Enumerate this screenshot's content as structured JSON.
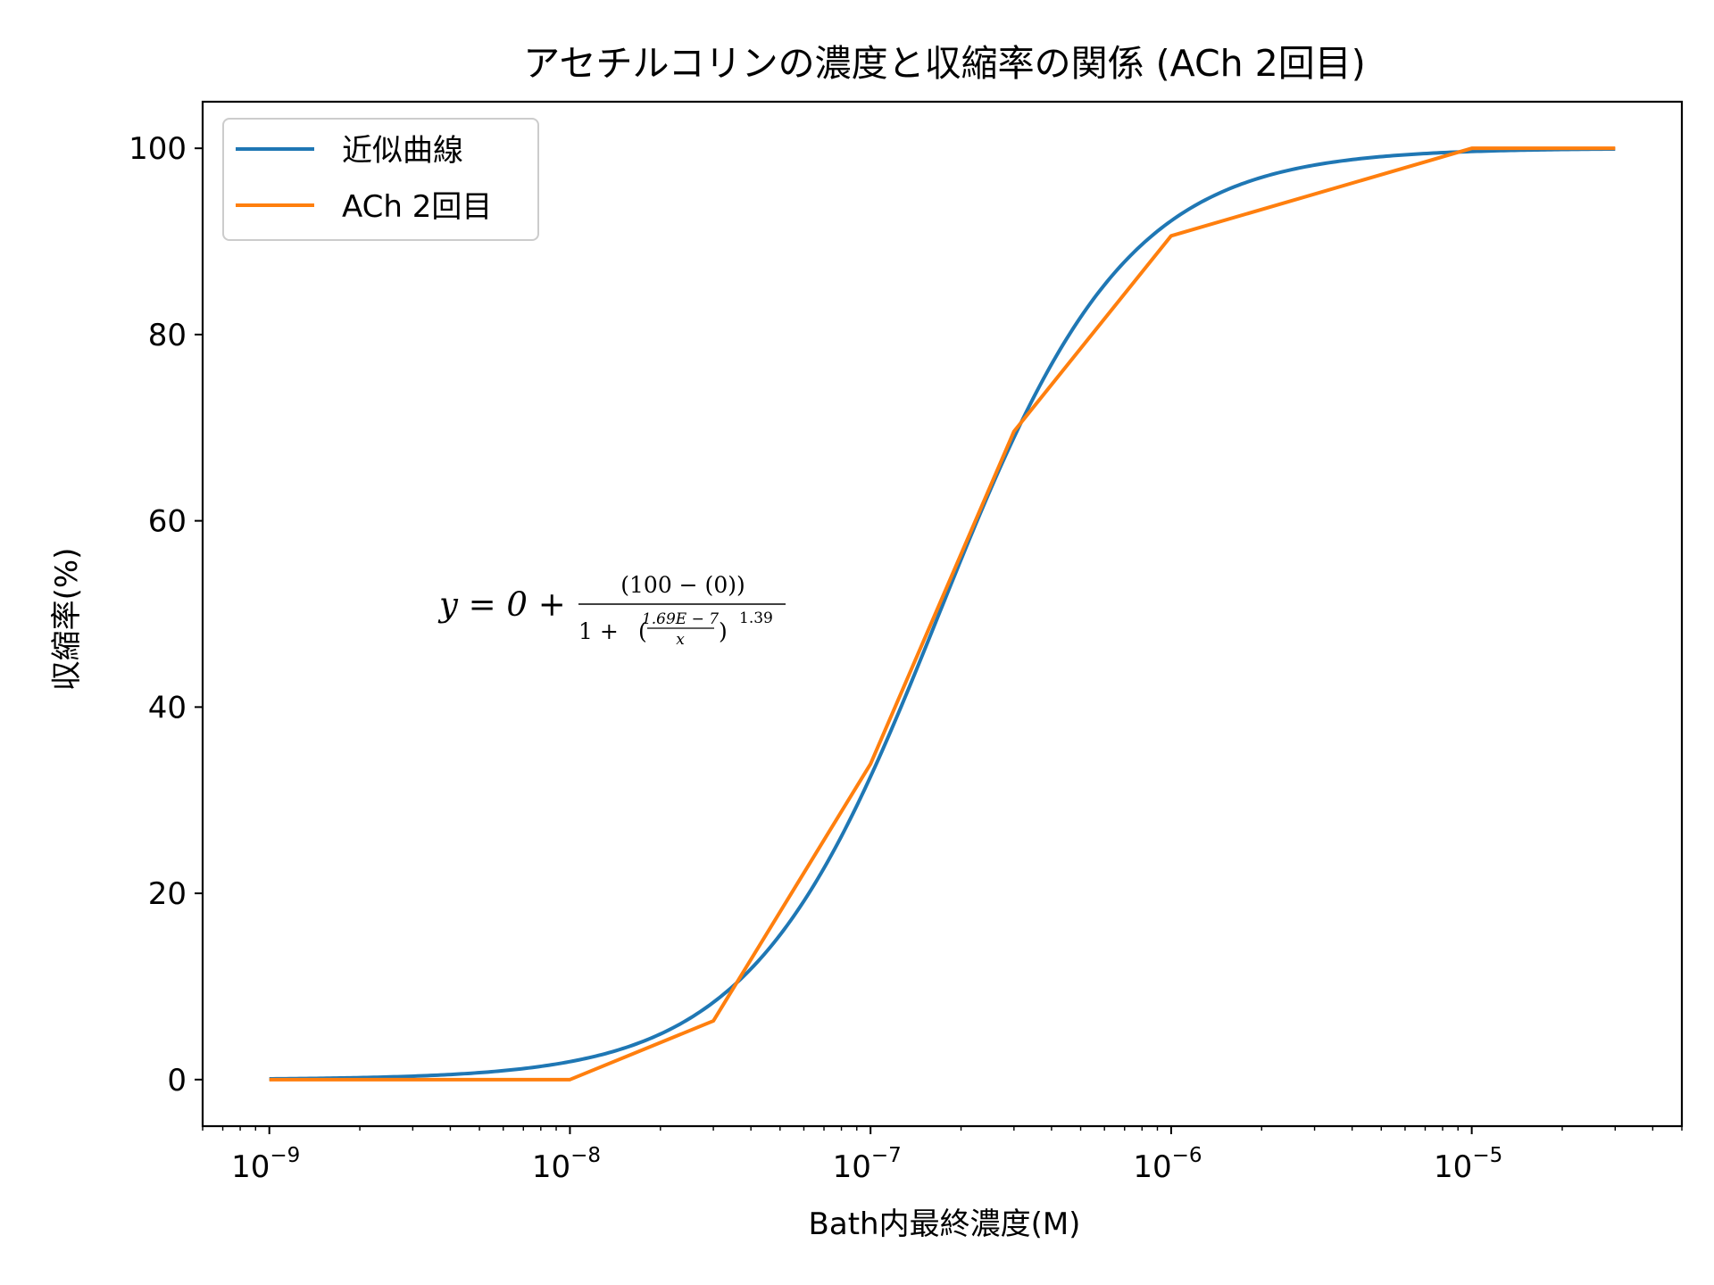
{
  "chart_data": {
    "type": "line",
    "title": "アセチルコリンの濃度と収縮率の関係 (ACh 2回目)",
    "xlabel": "Bath内最終濃度(M)",
    "ylabel": "収縮率(%)",
    "xscale": "log",
    "xlim": [
      6e-10,
      5e-05
    ],
    "ylim": [
      -5,
      105
    ],
    "x_ticks": [
      {
        "base": "10",
        "exp": "−9",
        "value": 1e-09
      },
      {
        "base": "10",
        "exp": "−8",
        "value": 1e-08
      },
      {
        "base": "10",
        "exp": "−7",
        "value": 1e-07
      },
      {
        "base": "10",
        "exp": "−6",
        "value": 1e-06
      },
      {
        "base": "10",
        "exp": "−5",
        "value": 1e-05
      }
    ],
    "y_ticks": [
      0,
      20,
      40,
      60,
      80,
      100
    ],
    "legend": {
      "placement": "upper-left"
    },
    "series": [
      {
        "name": "近似曲線",
        "color": "#1f77b4",
        "kind": "fit",
        "model": {
          "bottom": 0,
          "top": 100,
          "ec50": 1.69e-07,
          "hill": 1.39
        },
        "x_range": [
          1e-09,
          3e-05
        ]
      },
      {
        "name": "ACh 2回目",
        "color": "#ff7f0e",
        "kind": "data",
        "x": [
          1e-09,
          1e-08,
          3e-08,
          1e-07,
          3e-07,
          1e-06,
          1e-05,
          3e-05
        ],
        "y": [
          0,
          0,
          6.3,
          33.9,
          69.6,
          90.6,
          100,
          100
        ]
      }
    ],
    "annotation": {
      "lead": "y = 0 + ",
      "numerator": "(100 − (0))",
      "denominator_left": "1 + ",
      "inner_numerator": "1.69E − 7",
      "inner_denominator": "x",
      "exponent": "1.39"
    },
    "grid": false
  }
}
